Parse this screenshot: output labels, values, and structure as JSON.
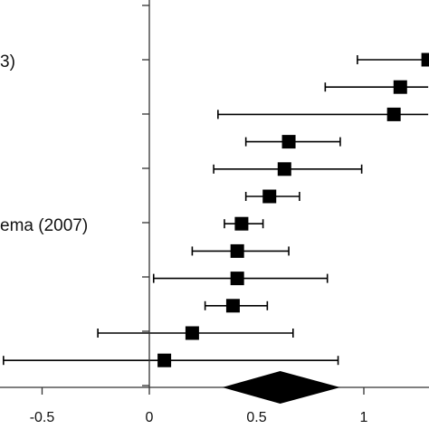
{
  "chart_data": {
    "type": "forest",
    "title": "",
    "xlabel": "",
    "ylabel": "",
    "xlim": [
      -0.68,
      1.3
    ],
    "x_ticks": [
      -0.5,
      0,
      0.5,
      1
    ],
    "x_tick_labels": [
      "-0.5",
      "0",
      "0.5",
      "1"
    ],
    "reference_line": 0,
    "grid": false,
    "studies": [
      {
        "label": "3)",
        "estimate": 1.3,
        "ci": [
          0.97,
          1.3
        ]
      },
      {
        "label": "",
        "estimate": 1.17,
        "ci": [
          0.82,
          1.3
        ]
      },
      {
        "label": "",
        "estimate": 1.14,
        "ci": [
          0.32,
          1.3
        ]
      },
      {
        "label": "",
        "estimate": 0.65,
        "ci": [
          0.45,
          0.89
        ]
      },
      {
        "label": "",
        "estimate": 0.63,
        "ci": [
          0.3,
          0.99
        ]
      },
      {
        "label": "",
        "estimate": 0.56,
        "ci": [
          0.45,
          0.7
        ]
      },
      {
        "label": "ema (2007)",
        "estimate": 0.43,
        "ci": [
          0.35,
          0.53
        ]
      },
      {
        "label": "",
        "estimate": 0.41,
        "ci": [
          0.2,
          0.65
        ]
      },
      {
        "label": "",
        "estimate": 0.41,
        "ci": [
          0.02,
          0.83
        ]
      },
      {
        "label": "",
        "estimate": 0.39,
        "ci": [
          0.26,
          0.55
        ]
      },
      {
        "label": "",
        "estimate": 0.2,
        "ci": [
          -0.24,
          0.67
        ]
      },
      {
        "label": "",
        "estimate": 0.07,
        "ci": [
          -0.68,
          0.88
        ]
      }
    ],
    "pooled": {
      "estimate": 0.61,
      "ci": [
        0.34,
        0.89
      ]
    },
    "colors": {
      "marker": "#000000",
      "axis": "#333333"
    }
  }
}
